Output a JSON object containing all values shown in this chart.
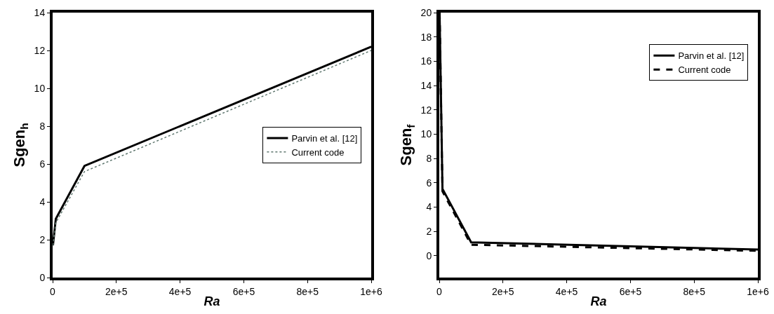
{
  "chart_data": [
    {
      "type": "line",
      "xlabel": "Ra",
      "ylabel": "Sgen$_{h}$",
      "x": [
        1000,
        10000,
        100000,
        1000000
      ],
      "xlim": [
        0,
        1000000
      ],
      "xticks": [
        0,
        {
          "value": 200000,
          "label": "2e+5"
        },
        {
          "value": 400000,
          "label": "4e+5"
        },
        {
          "value": 600000,
          "label": "6e+5"
        },
        {
          "value": 800000,
          "label": "8e+5"
        },
        {
          "value": 1000000,
          "label": "1e+6"
        }
      ],
      "ylim": [
        0,
        14
      ],
      "yticks": [
        0,
        2,
        4,
        6,
        8,
        10,
        12,
        14
      ],
      "grid": false,
      "legend": "right",
      "marker": "none",
      "series": [
        {
          "name": "Parvin et al. [12]",
          "color": "#000000",
          "line_style": "solid",
          "values": [
            1.7,
            3.1,
            5.9,
            12.2
          ]
        },
        {
          "name": "Current code",
          "color": "#607870",
          "line_style": "dotted",
          "values": [
            1.7,
            2.9,
            5.6,
            12.0
          ]
        }
      ]
    },
    {
      "type": "line",
      "xlabel": "Ra",
      "ylabel": "Sgen$_{f}$",
      "x": [
        1000,
        10000,
        100000,
        1000000
      ],
      "xlim": [
        0,
        1000000
      ],
      "xticks": [
        0,
        {
          "value": 200000,
          "label": "2e+5"
        },
        {
          "value": 400000,
          "label": "4e+5"
        },
        {
          "value": 600000,
          "label": "6e+5"
        },
        {
          "value": 800000,
          "label": "8e+5"
        },
        {
          "value": 1000000,
          "label": "1e+6"
        }
      ],
      "ylim": [
        -1.8,
        20
      ],
      "yticks": [
        0,
        2,
        4,
        6,
        8,
        10,
        12,
        14,
        16,
        18,
        20
      ],
      "grid": false,
      "legend": "top right",
      "marker": "none",
      "series": [
        {
          "name": "Parvin et al. [12]",
          "color": "#000000",
          "line_style": "solid",
          "values": [
            20,
            5.5,
            1.1,
            0.5
          ]
        },
        {
          "name": "Current code",
          "color": "#000000",
          "line_style": "dashed",
          "values": [
            20,
            5.3,
            0.9,
            0.4
          ]
        }
      ]
    }
  ]
}
